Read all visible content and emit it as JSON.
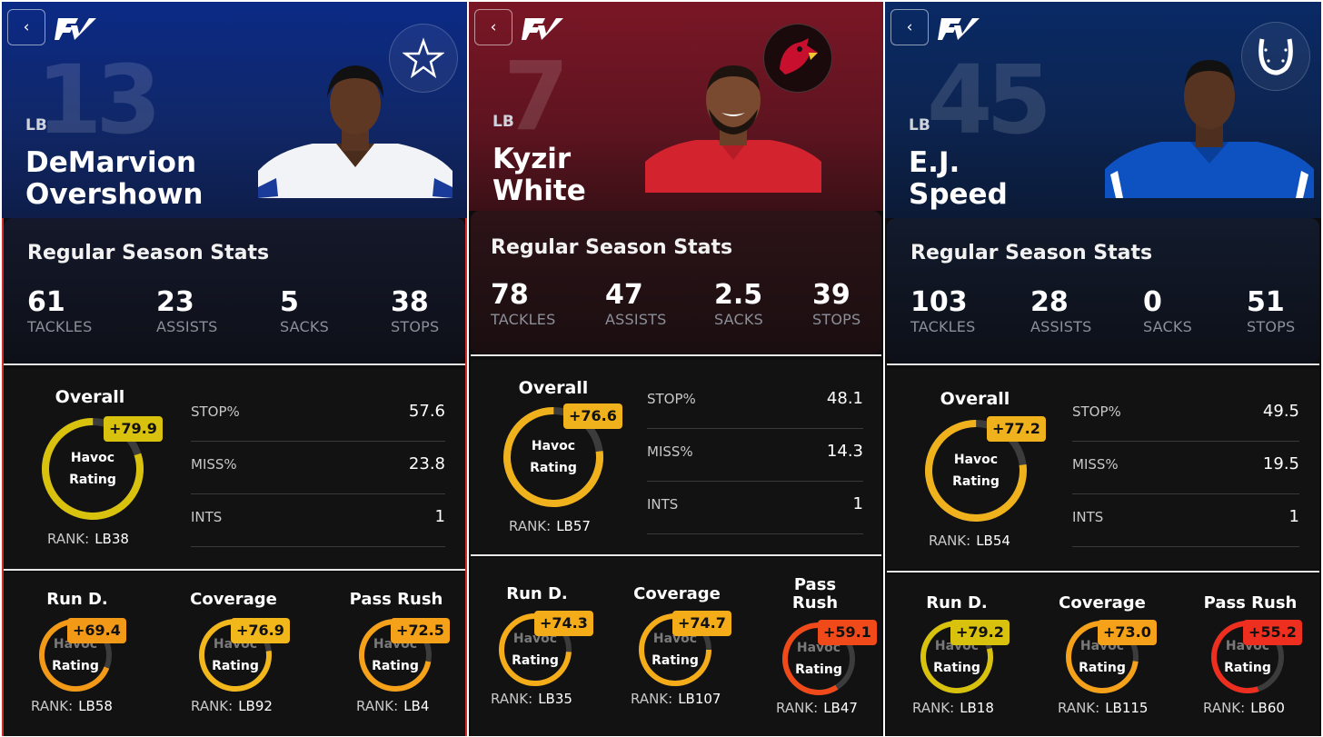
{
  "brand": {
    "logo_text": "FV"
  },
  "common": {
    "back_icon": "chevron-left-icon",
    "stats_title": "Regular Season Stats",
    "overall_label": "Overall",
    "gauge_line1": "Havoc",
    "gauge_line2": "Rating",
    "rank_prefix": "RANK:",
    "stat_labels": [
      "TACKLES",
      "ASSISTS",
      "SACKS",
      "STOPS"
    ],
    "split_labels": [
      "STOP%",
      "MISS%",
      "INTS"
    ]
  },
  "cards": [
    {
      "team_icon": "star-icon",
      "jersey": "13",
      "position": "LB",
      "name_line1": "DeMarvion",
      "name_line2": "Overshown",
      "header_color": "#0b2a7a",
      "stats": [
        "61",
        "23",
        "5",
        "38"
      ],
      "overall": {
        "score": "+79.9",
        "rank": "LB38",
        "fill": 0.8,
        "color": "#d8c20e"
      },
      "splits": [
        "57.6",
        "23.8",
        "1"
      ],
      "sub": [
        {
          "label1": "Run D.",
          "label2": "",
          "score": "+69.4",
          "rank": "LB58",
          "fill": 0.69,
          "color": "#f29a18"
        },
        {
          "label1": "Coverage",
          "label2": "",
          "score": "+76.9",
          "rank": "LB92",
          "fill": 0.77,
          "color": "#f2b71a"
        },
        {
          "label1": "Pass Rush",
          "label2": "",
          "score": "+72.5",
          "rank": "LB4",
          "fill": 0.72,
          "color": "#f5a119"
        }
      ]
    },
    {
      "team_icon": "cardinal-icon",
      "jersey": "7",
      "position": "LB",
      "name_line1": "Kyzir",
      "name_line2": "White",
      "header_color": "#6b1421",
      "stats": [
        "78",
        "47",
        "2.5",
        "39"
      ],
      "overall": {
        "score": "+76.6",
        "rank": "LB57",
        "fill": 0.77,
        "color": "#f0b21c"
      },
      "splits": [
        "48.1",
        "14.3",
        "1"
      ],
      "sub": [
        {
          "label1": "Run D.",
          "label2": "",
          "score": "+74.3",
          "rank": "LB35",
          "fill": 0.74,
          "color": "#f5ac19"
        },
        {
          "label1": "Coverage",
          "label2": "",
          "score": "+74.7",
          "rank": "LB107",
          "fill": 0.75,
          "color": "#f5ac19"
        },
        {
          "label1": "Pass",
          "label2": "Rush",
          "score": "+59.1",
          "rank": "LB47",
          "fill": 0.59,
          "color": "#f04a1a"
        }
      ]
    },
    {
      "team_icon": "horseshoe-icon",
      "jersey": "45",
      "position": "LB",
      "name_line1": "E.J.",
      "name_line2": "Speed",
      "header_color": "#0a2a63",
      "stats": [
        "103",
        "28",
        "0",
        "51"
      ],
      "overall": {
        "score": "+77.2",
        "rank": "LB54",
        "fill": 0.77,
        "color": "#f0b21c"
      },
      "splits": [
        "49.5",
        "19.5",
        "1"
      ],
      "sub": [
        {
          "label1": "Run D.",
          "label2": "",
          "score": "+79.2",
          "rank": "LB18",
          "fill": 0.79,
          "color": "#d8c20e"
        },
        {
          "label1": "Coverage",
          "label2": "",
          "score": "+73.0",
          "rank": "LB115",
          "fill": 0.73,
          "color": "#f5a119"
        },
        {
          "label1": "Pass Rush",
          "label2": "",
          "score": "+55.2",
          "rank": "LB60",
          "fill": 0.55,
          "color": "#ee2e1e"
        }
      ]
    }
  ]
}
